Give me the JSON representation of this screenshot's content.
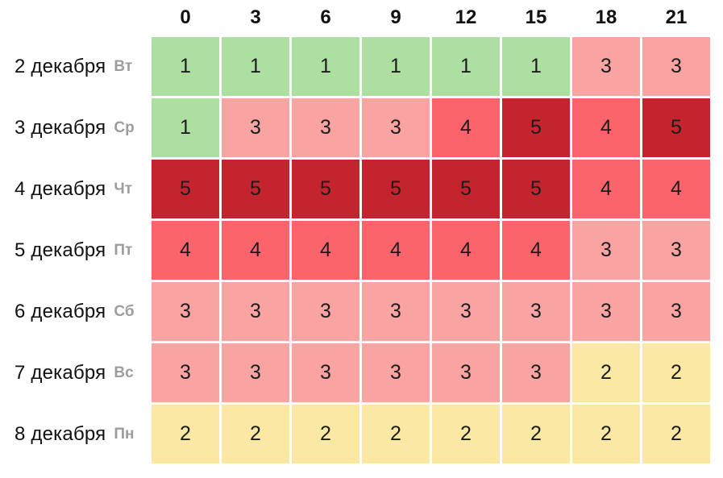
{
  "page": {
    "background_color": "#ffffff"
  },
  "chart_data": {
    "type": "heatmap",
    "description": "kp-index-forecast-heatmap",
    "x_labels": [
      "0",
      "3",
      "6",
      "9",
      "12",
      "15",
      "18",
      "21"
    ],
    "rows": [
      {
        "date": "2 декабря",
        "day": "Вт",
        "values": [
          1,
          1,
          1,
          1,
          1,
          1,
          3,
          3
        ]
      },
      {
        "date": "3 декабря",
        "day": "Ср",
        "values": [
          1,
          3,
          3,
          3,
          4,
          5,
          4,
          5
        ]
      },
      {
        "date": "4 декабря",
        "day": "Чт",
        "values": [
          5,
          5,
          5,
          5,
          5,
          5,
          4,
          4
        ]
      },
      {
        "date": "5 декабря",
        "day": "Пт",
        "values": [
          4,
          4,
          4,
          4,
          4,
          4,
          3,
          3
        ]
      },
      {
        "date": "6 декабря",
        "day": "Сб",
        "values": [
          3,
          3,
          3,
          3,
          3,
          3,
          3,
          3
        ]
      },
      {
        "date": "7 декабря",
        "day": "Вс",
        "values": [
          3,
          3,
          3,
          3,
          3,
          3,
          2,
          2
        ]
      },
      {
        "date": "8 декабря",
        "day": "Пн",
        "values": [
          2,
          2,
          2,
          2,
          2,
          2,
          2,
          2
        ]
      }
    ],
    "value_colors": {
      "1": "#addfa1",
      "2": "#fbe8a3",
      "3": "#faa3a3",
      "4": "#fc646b",
      "5": "#c4242e"
    },
    "styles": {
      "header_text_color": "#111111",
      "date_text_color": "#111111",
      "day_text_color": "#9d9d9d",
      "cell_text_color": "#1c1c1c",
      "grid_gap_color": "#ffffff"
    },
    "layout": {
      "legend_position": "none",
      "grid": "white-gaps"
    }
  }
}
